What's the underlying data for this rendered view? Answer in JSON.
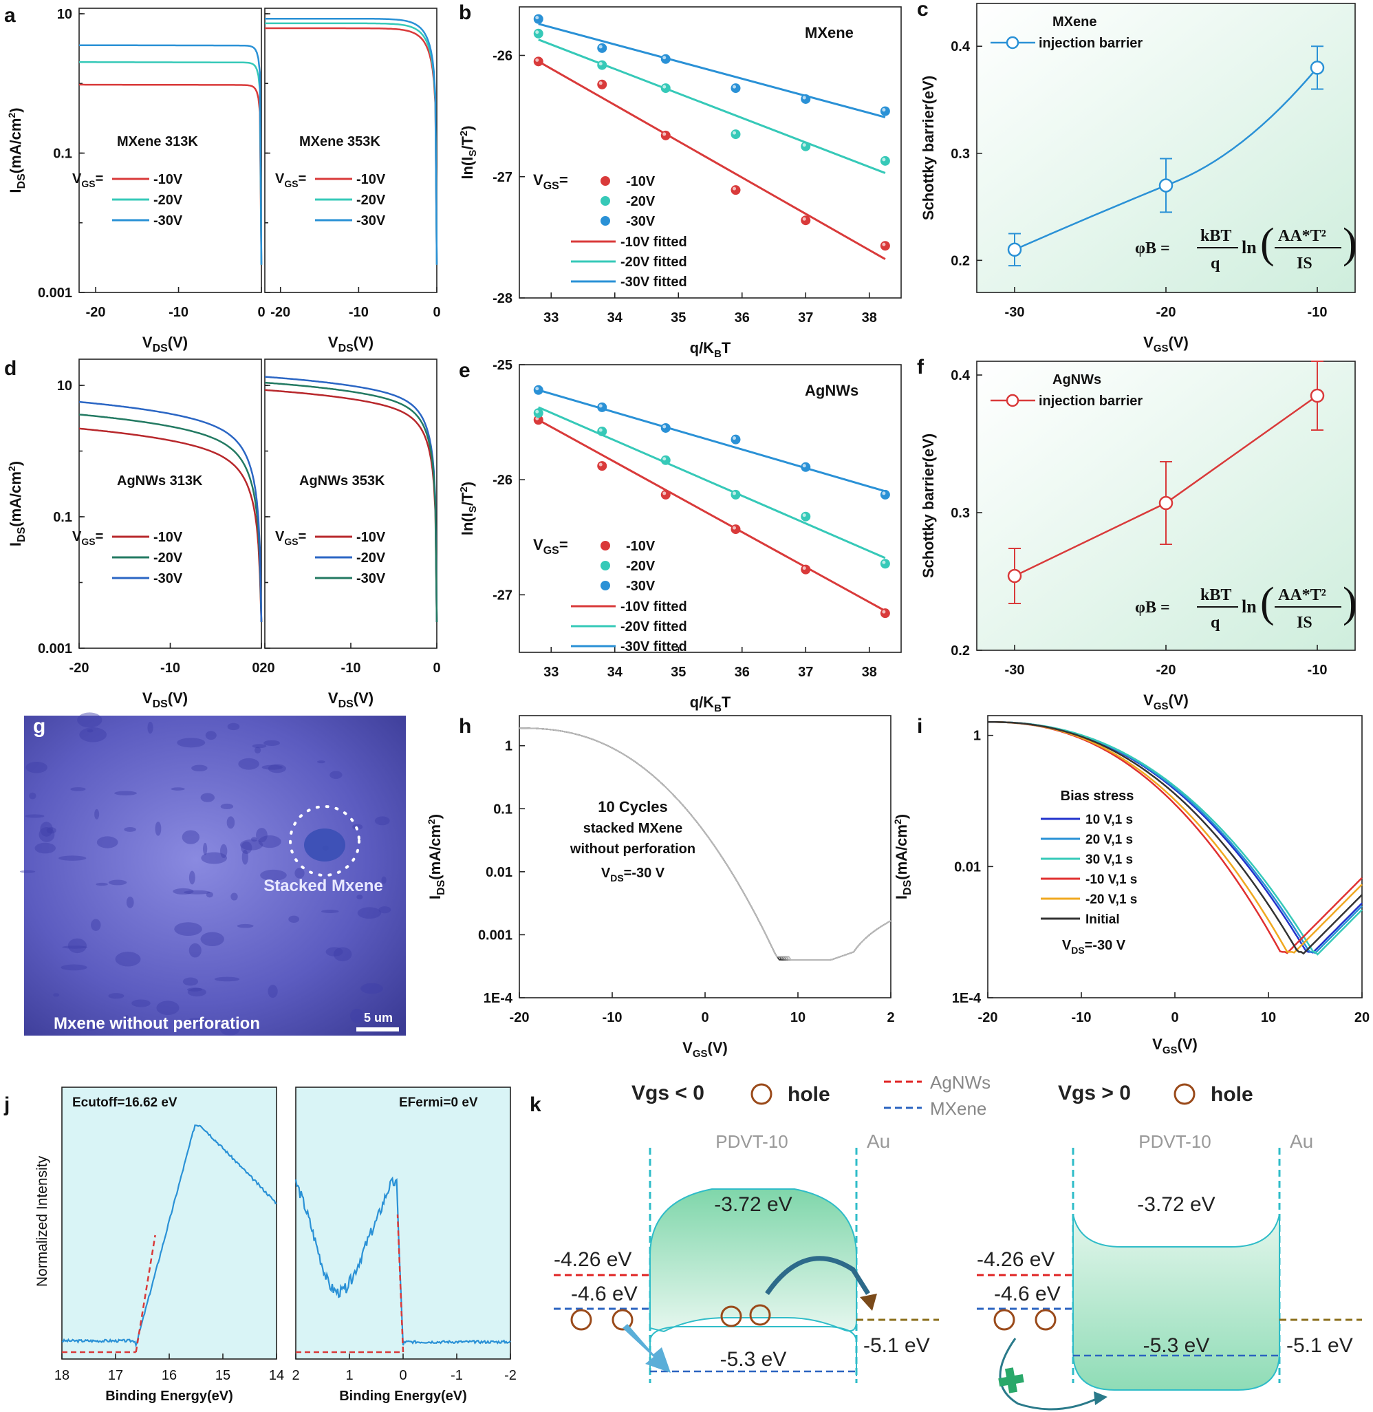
{
  "figure_title": "Multi-panel figure: MXene / AgNWs contact transistor characterization",
  "colors": {
    "red": "#d93a3a",
    "teal": "#36c9b8",
    "blue": "#2a91d6",
    "darkred": "#b8282c",
    "darkgreen": "#237a62",
    "darkblue": "#2b66c4",
    "cyan_fill": "#d9f4f6",
    "band_green": "#86dbb2"
  },
  "chart_data": [
    {
      "id": "a",
      "label": "a",
      "type": "line",
      "yscale": "log",
      "subpanels": [
        {
          "title": "MXene 313K",
          "xlim": [
            -22,
            0
          ],
          "xticks": [
            -20,
            -10,
            0
          ],
          "legend": [
            {
              "name": "-10V",
              "color": "#d93a3a"
            },
            {
              "name": "-20V",
              "color": "#36c9b8"
            },
            {
              "name": "-30V",
              "color": "#2a91d6"
            }
          ],
          "series": [
            {
              "name": "-10V",
              "plateau": 0.95,
              "color": "#d93a3a"
            },
            {
              "name": "-20V",
              "plateau": 2.0,
              "color": "#36c9b8"
            },
            {
              "name": "-30V",
              "plateau": 3.5,
              "color": "#2a91d6"
            }
          ]
        },
        {
          "title": "MXene 353K",
          "xlim": [
            -22,
            0
          ],
          "xticks": [
            -20,
            -10,
            0
          ],
          "legend": [
            {
              "name": "-10V",
              "color": "#d93a3a"
            },
            {
              "name": "-20V",
              "color": "#36c9b8"
            },
            {
              "name": "-30V",
              "color": "#2a91d6"
            }
          ],
          "series": [
            {
              "name": "-10V",
              "plateau": 6.2,
              "color": "#d93a3a"
            },
            {
              "name": "-20V",
              "plateau": 7.3,
              "color": "#36c9b8"
            },
            {
              "name": "-30V",
              "plateau": 8.5,
              "color": "#2a91d6"
            }
          ]
        }
      ],
      "ylabel": "IDS(mA/cm2)",
      "xlabel": "VDS(V)",
      "ylim": [
        0.001,
        12
      ],
      "yticks": [
        "10",
        "0.1",
        "0.001"
      ]
    },
    {
      "id": "b",
      "label": "b",
      "type": "scatter",
      "annotation": "MXene",
      "xlabel": "q/KBT",
      "ylabel": "ln(IS/T2)",
      "xlim": [
        32.5,
        38.5
      ],
      "ylim": [
        -28,
        -25.6
      ],
      "xticks": [
        "33",
        "34",
        "35",
        "36",
        "37",
        "38"
      ],
      "yticks": [
        "-26",
        "-27",
        "-28"
      ],
      "x": [
        32.8,
        33.8,
        34.8,
        35.9,
        37.0,
        38.25
      ],
      "series": [
        {
          "name": "-10V",
          "values": [
            -26.05,
            -26.24,
            -26.66,
            -27.11,
            -27.36,
            -27.57
          ],
          "fit": [
            -26.05,
            -27.68
          ],
          "color": "#d93a3a"
        },
        {
          "name": "-20V",
          "values": [
            -25.82,
            -26.08,
            -26.27,
            -26.65,
            -26.75,
            -26.87
          ],
          "fit": [
            -25.87,
            -26.97
          ],
          "color": "#36c9b8"
        },
        {
          "name": "-30V",
          "values": [
            -25.7,
            -25.94,
            -26.03,
            -26.27,
            -26.36,
            -26.46
          ],
          "fit": [
            -25.74,
            -26.51
          ],
          "color": "#2a91d6"
        }
      ],
      "legend_points": [
        "-10V",
        "-20V",
        "-30V"
      ],
      "legend_fits": [
        "-10V fitted",
        "-20V fitted",
        "-30V fitted"
      ]
    },
    {
      "id": "c",
      "label": "c",
      "type": "line",
      "legend": [
        "MXene",
        "injection barrier"
      ],
      "xlabel": "VGS(V)",
      "ylabel": "Schottky barrier(eV)",
      "xlim": [
        -32.5,
        -7.5
      ],
      "ylim": [
        0.17,
        0.44
      ],
      "xticks": [
        "-30",
        "-20",
        "-10"
      ],
      "yticks": [
        "0.2",
        "0.3",
        "0.4"
      ],
      "x": [
        -30,
        -20,
        -10
      ],
      "values": [
        0.21,
        0.27,
        0.38
      ],
      "errors": [
        0.015,
        0.025,
        0.02
      ],
      "color": "#2a91d6"
    },
    {
      "id": "d",
      "label": "d",
      "type": "line",
      "yscale": "log",
      "subpanels": [
        {
          "title": "AgNWs 313K",
          "xlim": [
            -20,
            0
          ],
          "xticks": [
            -20,
            -10,
            0
          ],
          "legend": [
            {
              "name": "-10V",
              "color": "#b8282c"
            },
            {
              "name": "-20V",
              "color": "#237a62"
            },
            {
              "name": "-30V",
              "color": "#2b66c4"
            }
          ],
          "series": [
            {
              "name": "-10V",
              "start": 2.2,
              "color": "#b8282c"
            },
            {
              "name": "-20V",
              "start": 3.6,
              "color": "#237a62"
            },
            {
              "name": "-30V",
              "start": 5.6,
              "color": "#2b66c4"
            }
          ]
        },
        {
          "title": "AgNWs 353K",
          "xlim": [
            -20,
            0
          ],
          "xticks": [
            -20,
            -10,
            0
          ],
          "legend": [
            {
              "name": "-10V",
              "color": "#b8282c"
            },
            {
              "name": "-20V",
              "color": "#2b66c4"
            },
            {
              "name": "-30V",
              "color": "#237a62"
            }
          ],
          "series": [
            {
              "name": "-10V",
              "start": 8.5,
              "color": "#b8282c"
            },
            {
              "name": "-20V",
              "start": 13.5,
              "color": "#2b66c4"
            },
            {
              "name": "-30V",
              "start": 11.0,
              "color": "#237a62"
            }
          ]
        }
      ],
      "ylabel": "IDS(mA/cm2)",
      "xlabel": "VDS(V)",
      "ylim": [
        0.001,
        25
      ],
      "yticks": [
        "10",
        "0.1",
        "0.001"
      ],
      "shared_tick": "020"
    },
    {
      "id": "e",
      "label": "e",
      "type": "scatter",
      "annotation": "AgNWs",
      "xlabel": "q/KBT",
      "ylabel": "ln(IS/T2)",
      "xlim": [
        32.5,
        38.5
      ],
      "ylim": [
        -27.5,
        -25
      ],
      "xticks": [
        "33",
        "34",
        "35",
        "36",
        "37",
        "38"
      ],
      "yticks": [
        "-25",
        "-26",
        "-27"
      ],
      "x": [
        32.8,
        33.8,
        34.8,
        35.9,
        37.0,
        38.25
      ],
      "series": [
        {
          "name": "-10V",
          "values": [
            -25.48,
            -25.88,
            -26.13,
            -26.43,
            -26.78,
            -27.16
          ],
          "fit": [
            -25.48,
            -27.14
          ],
          "color": "#d93a3a"
        },
        {
          "name": "-20V",
          "values": [
            -25.42,
            -25.58,
            -25.83,
            -26.13,
            -26.32,
            -26.73
          ],
          "fit": [
            -25.37,
            -26.68
          ],
          "color": "#36c9b8"
        },
        {
          "name": "-30V",
          "values": [
            -25.22,
            -25.37,
            -25.55,
            -25.65,
            -25.89,
            -26.13
          ],
          "fit": [
            -25.22,
            -26.1
          ],
          "color": "#2a91d6"
        }
      ],
      "legend_points": [
        "-10V",
        "-20V",
        "-30V"
      ],
      "legend_fits": [
        "-10V fitted",
        "-20V fitted",
        "-30V fitted"
      ]
    },
    {
      "id": "f",
      "label": "f",
      "type": "line",
      "legend": [
        "AgNWs",
        "injection barrier"
      ],
      "xlabel": "VGS(V)",
      "ylabel": "Schottky barrier(eV)",
      "xlim": [
        -32.5,
        -7.5
      ],
      "ylim": [
        0.2,
        0.41
      ],
      "xticks": [
        "-30",
        "-20",
        "-10"
      ],
      "yticks": [
        "0.2",
        "0.3",
        "0.4"
      ],
      "x": [
        -30,
        -20,
        -10
      ],
      "values": [
        0.254,
        0.307,
        0.385
      ],
      "errors": [
        0.02,
        0.03,
        0.025
      ],
      "color": "#d93a3a"
    },
    {
      "id": "h",
      "label": "h",
      "type": "line",
      "yscale": "log",
      "xlabel": "VGS(V)",
      "ylabel": "IDS(mA/cm2)",
      "xlim": [
        -20,
        20
      ],
      "ylim": [
        0.0001,
        3
      ],
      "xticks": [
        "-20",
        "-10",
        "0",
        "10",
        "2"
      ],
      "yticks": [
        "1",
        "0.1",
        "0.01",
        "0.001",
        "1E-4"
      ],
      "annotation": [
        "10 Cycles",
        "stacked MXene",
        "without perforation",
        "VDS=-30 V"
      ],
      "cycles": 10
    },
    {
      "id": "i",
      "label": "i",
      "type": "line",
      "yscale": "log",
      "xlabel": "VGS(V)",
      "ylabel": "IDS(mA/cm2)",
      "xlim": [
        -20,
        20
      ],
      "ylim": [
        0.0001,
        2
      ],
      "xticks": [
        "-20",
        "-10",
        "0",
        "10",
        "20"
      ],
      "yticks": [
        "1",
        "0.01",
        "1E-4"
      ],
      "legend_title": "Bias stress",
      "series": [
        {
          "name": "10 V,1 s",
          "color": "#2233cc",
          "vmin": 14.5
        },
        {
          "name": "20 V,1 s",
          "color": "#2a91d6",
          "vmin": 14.8
        },
        {
          "name": "30 V,1 s",
          "color": "#36c9b8",
          "vmin": 15.2
        },
        {
          "name": "-10 V,1 s",
          "color": "#e03030",
          "vmin": 11.8
        },
        {
          "name": "-20 V,1 s",
          "color": "#f0a820",
          "vmin": 12.5
        },
        {
          "name": "Initial",
          "color": "#333333",
          "vmin": 13.6
        }
      ],
      "annotation": "VDS=-30 V"
    },
    {
      "id": "j",
      "label": "j",
      "type": "line",
      "ylabel": "Normalized Intensity",
      "subpanels": [
        {
          "title": "Ecutoff=16.62 eV",
          "xlim": [
            18,
            14
          ],
          "xticks": [
            "18",
            "17",
            "16",
            "15",
            "14"
          ],
          "xlabel": "Binding Energy(eV)",
          "marker": 16.62
        },
        {
          "title": "EFermi=0 eV",
          "xlim": [
            2,
            -2
          ],
          "xticks": [
            "2",
            "1",
            "0",
            "-1",
            "-2"
          ],
          "xlabel": "Binding Energy(eV)",
          "marker": 0
        }
      ]
    }
  ],
  "panel_g": {
    "label": "g",
    "circle_label": "Stacked Mxene",
    "caption": "Mxene without perforation",
    "scalebar": "5 um"
  },
  "panel_k": {
    "label": "k",
    "left_condition": "Vgs < 0",
    "right_condition": "Vgs > 0",
    "hole_label": "hole",
    "legend_agnws": "AgNWs",
    "legend_mxene": "MXene",
    "semiconductor": "PDVT-10",
    "electrode": "Au",
    "lumo": "-3.72 eV",
    "homo": "-5.3 eV",
    "agnws_wf": "-4.26 eV",
    "mxene_wf": "-4.6 eV",
    "au_wf": "-5.1 eV"
  }
}
